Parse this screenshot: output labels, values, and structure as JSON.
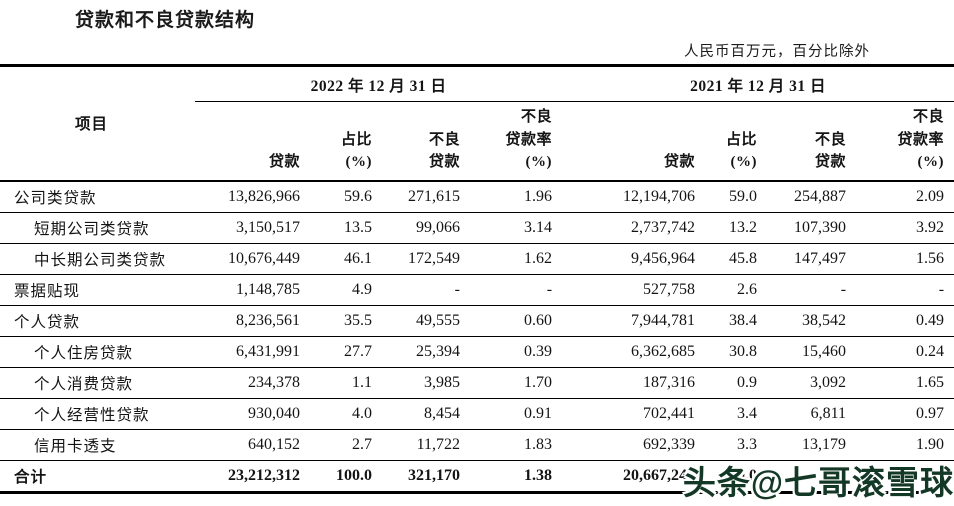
{
  "title": "贷款和不良贷款结构",
  "unit_note": "人民币百万元，百分比除外",
  "table": {
    "item_header": "项目",
    "period_headers": [
      "2022 年 12 月 31 日",
      "2021 年 12 月 31 日"
    ],
    "column_headers": {
      "loans": "贷款",
      "share_line1": "占比",
      "share_line2": "(%)",
      "npl_line1": "不良",
      "npl_line2": "贷款",
      "npl_ratio_line1": "不良",
      "npl_ratio_line2": "贷款率",
      "npl_ratio_line3": "(%)"
    },
    "rows": [
      {
        "label": "公司类贷款",
        "indent": false,
        "bold": false,
        "values": [
          "13,826,966",
          "59.6",
          "271,615",
          "1.96",
          "12,194,706",
          "59.0",
          "254,887",
          "2.09"
        ]
      },
      {
        "label": "短期公司类贷款",
        "indent": true,
        "bold": false,
        "values": [
          "3,150,517",
          "13.5",
          "99,066",
          "3.14",
          "2,737,742",
          "13.2",
          "107,390",
          "3.92"
        ]
      },
      {
        "label": "中长期公司类贷款",
        "indent": true,
        "bold": false,
        "values": [
          "10,676,449",
          "46.1",
          "172,549",
          "1.62",
          "9,456,964",
          "45.8",
          "147,497",
          "1.56"
        ]
      },
      {
        "label": "票据贴现",
        "indent": false,
        "bold": false,
        "values": [
          "1,148,785",
          "4.9",
          "-",
          "-",
          "527,758",
          "2.6",
          "-",
          "-"
        ]
      },
      {
        "label": "个人贷款",
        "indent": false,
        "bold": false,
        "values": [
          "8,236,561",
          "35.5",
          "49,555",
          "0.60",
          "7,944,781",
          "38.4",
          "38,542",
          "0.49"
        ]
      },
      {
        "label": "个人住房贷款",
        "indent": true,
        "bold": false,
        "values": [
          "6,431,991",
          "27.7",
          "25,394",
          "0.39",
          "6,362,685",
          "30.8",
          "15,460",
          "0.24"
        ]
      },
      {
        "label": "个人消费贷款",
        "indent": true,
        "bold": false,
        "values": [
          "234,378",
          "1.1",
          "3,985",
          "1.70",
          "187,316",
          "0.9",
          "3,092",
          "1.65"
        ]
      },
      {
        "label": "个人经营性贷款",
        "indent": true,
        "bold": false,
        "values": [
          "930,040",
          "4.0",
          "8,454",
          "0.91",
          "702,441",
          "3.4",
          "6,811",
          "0.97"
        ]
      },
      {
        "label": "信用卡透支",
        "indent": true,
        "bold": false,
        "values": [
          "640,152",
          "2.7",
          "11,722",
          "1.83",
          "692,339",
          "3.3",
          "13,179",
          "1.90"
        ]
      },
      {
        "label": "合计",
        "indent": false,
        "bold": true,
        "values": [
          "23,212,312",
          "100.0",
          "321,170",
          "1.38",
          "20,667,245",
          "100.0",
          "",
          ""
        ]
      }
    ]
  },
  "watermark": {
    "text": "头条@七哥滚雪球",
    "color": "#143826"
  }
}
